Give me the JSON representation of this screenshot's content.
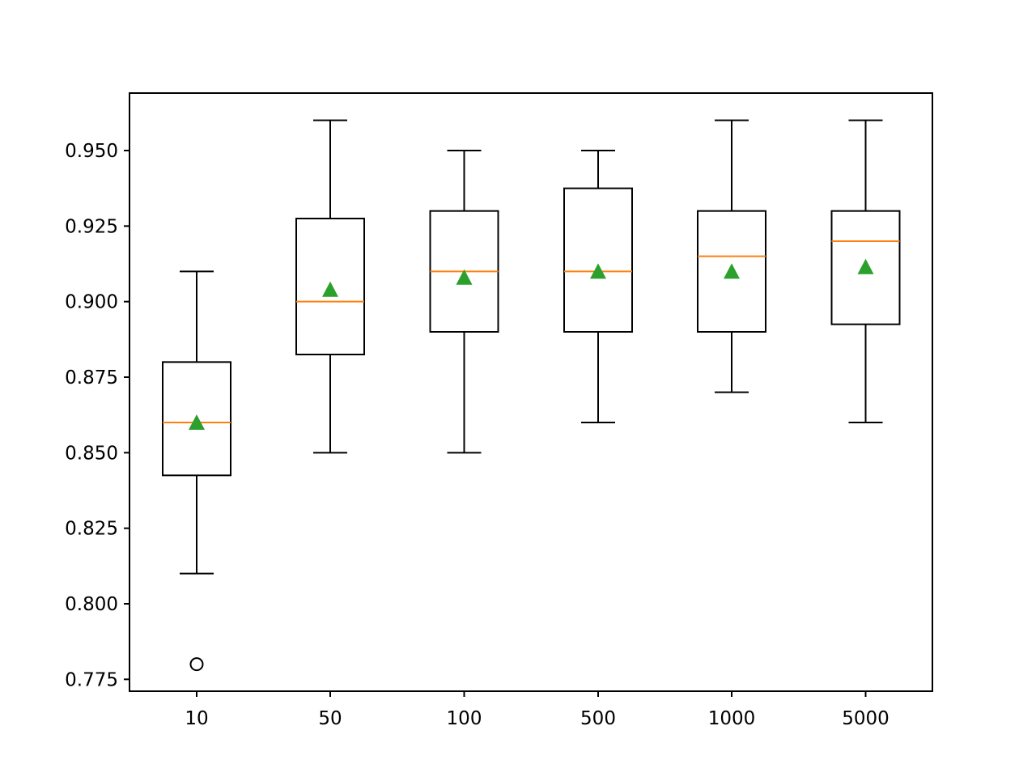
{
  "chart_data": {
    "type": "box",
    "title": "",
    "xlabel": "",
    "ylabel": "",
    "categories": [
      "10",
      "50",
      "100",
      "500",
      "1000",
      "5000"
    ],
    "ylim": [
      0.771,
      0.969
    ],
    "yticks": [
      "0.775",
      "0.800",
      "0.825",
      "0.850",
      "0.875",
      "0.900",
      "0.925",
      "0.950"
    ],
    "ytick_values": [
      0.775,
      0.8,
      0.825,
      0.85,
      0.875,
      0.9,
      0.925,
      0.95
    ],
    "grid": false,
    "legend": null,
    "series": [
      {
        "name": "10",
        "whisker_low": 0.81,
        "q1": 0.8425,
        "median": 0.86,
        "q3": 0.88,
        "whisker_high": 0.91,
        "mean": 0.86,
        "outliers": [
          0.78
        ]
      },
      {
        "name": "50",
        "whisker_low": 0.85,
        "q1": 0.8825,
        "median": 0.9,
        "q3": 0.9275,
        "whisker_high": 0.96,
        "mean": 0.904,
        "outliers": []
      },
      {
        "name": "100",
        "whisker_low": 0.85,
        "q1": 0.89,
        "median": 0.91,
        "q3": 0.93,
        "whisker_high": 0.95,
        "mean": 0.908,
        "outliers": []
      },
      {
        "name": "500",
        "whisker_low": 0.86,
        "q1": 0.89,
        "median": 0.91,
        "q3": 0.9375,
        "whisker_high": 0.95,
        "mean": 0.91,
        "outliers": []
      },
      {
        "name": "1000",
        "whisker_low": 0.87,
        "q1": 0.89,
        "median": 0.915,
        "q3": 0.93,
        "whisker_high": 0.96,
        "mean": 0.91,
        "outliers": []
      },
      {
        "name": "5000",
        "whisker_low": 0.86,
        "q1": 0.8925,
        "median": 0.92,
        "q3": 0.93,
        "whisker_high": 0.96,
        "mean": 0.9115,
        "outliers": []
      }
    ],
    "colors": {
      "box": "#000000",
      "median": "#ff7f0e",
      "mean_marker": "#2ca02c",
      "outlier": "#000000",
      "background": "#ffffff"
    },
    "markers": {
      "mean": "triangle",
      "outlier": "circle-open"
    }
  }
}
